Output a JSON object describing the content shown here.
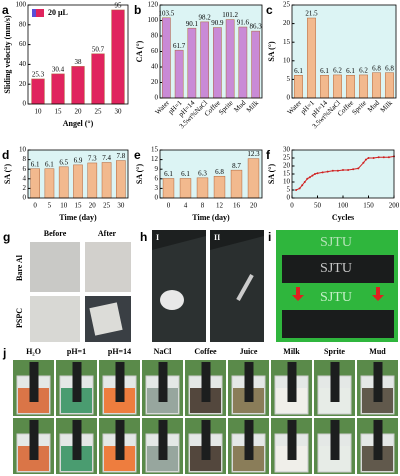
{
  "chart_data": [
    {
      "type": "bar",
      "label": "a",
      "ylabel": "Sliding velocity (mm/s)",
      "xlabel": "Angel (°)",
      "categories": [
        "10",
        "15",
        "20",
        "25",
        "30"
      ],
      "legend": "upper left",
      "series": [
        {
          "name": "20 μL",
          "color": "#e0245e",
          "values": [
            25.3,
            30.4,
            38,
            50.7,
            95
          ]
        }
      ],
      "ylim": [
        0,
        100
      ],
      "yticks": [
        0,
        20,
        40,
        60,
        80,
        100
      ],
      "background": "#ffffff"
    },
    {
      "type": "bar",
      "label": "b",
      "ylabel": "CA (°)",
      "categories": [
        "Water",
        "pH=1",
        "pH=14",
        "3.5wt%NaCl",
        "Coffee",
        "Sprite",
        "Mud",
        "Milk"
      ],
      "series": [
        {
          "color": "#c98ad6",
          "values": [
            103.5,
            61.7,
            90.1,
            98.2,
            90.9,
            101.2,
            91.6,
            86.3
          ]
        }
      ],
      "ylim": [
        0,
        120
      ],
      "yticks": [
        0,
        20,
        40,
        60,
        80,
        100,
        120
      ],
      "background": "#dcf4f4"
    },
    {
      "type": "bar",
      "label": "c",
      "ylabel": "SA (°)",
      "categories": [
        "Water",
        "pH=1",
        "pH=14",
        "3.5wt%NaCl",
        "Coffee",
        "Sprite",
        "Mud",
        "Milk"
      ],
      "series": [
        {
          "color": "#f2b98e",
          "values": [
            6.1,
            21.5,
            6.1,
            6.2,
            6.1,
            6.2,
            6.8,
            6.8
          ]
        }
      ],
      "ylim": [
        0,
        25
      ],
      "yticks": [
        0,
        5,
        10,
        15,
        20,
        25
      ],
      "background": "#dcf4f4"
    },
    {
      "type": "bar",
      "label": "d",
      "ylabel": "SA (°)",
      "xlabel": "Time (day)",
      "categories": [
        "0",
        "5",
        "10",
        "15",
        "20",
        "25",
        "30"
      ],
      "series": [
        {
          "color": "#f2b98e",
          "values": [
            6.1,
            6.1,
            6.5,
            6.9,
            7.3,
            7.4,
            7.8
          ]
        }
      ],
      "ylim": [
        0,
        10
      ],
      "yticks": [
        0,
        2,
        4,
        6,
        8,
        10
      ],
      "background": "#dcf4f4"
    },
    {
      "type": "bar",
      "label": "e",
      "ylabel": "SA (°)",
      "xlabel": "Time (day)",
      "categories": [
        "0",
        "4",
        "8",
        "12",
        "16",
        "20"
      ],
      "series": [
        {
          "color": "#f2b98e",
          "values": [
            6.1,
            6.1,
            6.3,
            6.8,
            8.7,
            12.3
          ]
        }
      ],
      "ylim": [
        0,
        15
      ],
      "yticks": [
        0,
        3,
        6,
        9,
        12,
        15
      ],
      "background": "#dcf4f4"
    },
    {
      "type": "line",
      "label": "f",
      "ylabel": "SA (°)",
      "xlabel": "Cycles",
      "x": [
        8,
        15,
        20,
        25,
        30,
        35,
        40,
        45,
        50,
        60,
        70,
        80,
        90,
        100,
        110,
        120,
        130,
        140,
        145,
        150,
        160,
        170,
        180,
        190,
        200
      ],
      "series": [
        {
          "color": "#d02020",
          "values": [
            5,
            6,
            8,
            10,
            12,
            13,
            14,
            15,
            15.5,
            16,
            16.5,
            17,
            17,
            17.5,
            17.5,
            18,
            18.5,
            22,
            24,
            25,
            25,
            25.5,
            25.5,
            25.5,
            26
          ]
        }
      ],
      "xlim": [
        0,
        200
      ],
      "xticks": [
        0,
        50,
        100,
        150,
        200
      ],
      "ylim": [
        0,
        30
      ],
      "yticks": [
        0,
        5,
        10,
        15,
        20,
        25,
        30
      ],
      "background": "#dcf4f4"
    }
  ],
  "figure": {
    "g": {
      "label": "g",
      "columns": [
        "Before",
        "After"
      ],
      "rows": [
        "Bare Al",
        "PSPC"
      ]
    },
    "h": {
      "label": "h",
      "parts": [
        "I",
        "II"
      ]
    },
    "i": {
      "label": "i",
      "text": "SJTU"
    },
    "j": {
      "label": "j",
      "liquids": [
        "H₂O",
        "pH=1",
        "pH=14",
        "NaCl",
        "Coffee",
        "Juice",
        "Milk",
        "Sprite",
        "Mud"
      ]
    }
  }
}
